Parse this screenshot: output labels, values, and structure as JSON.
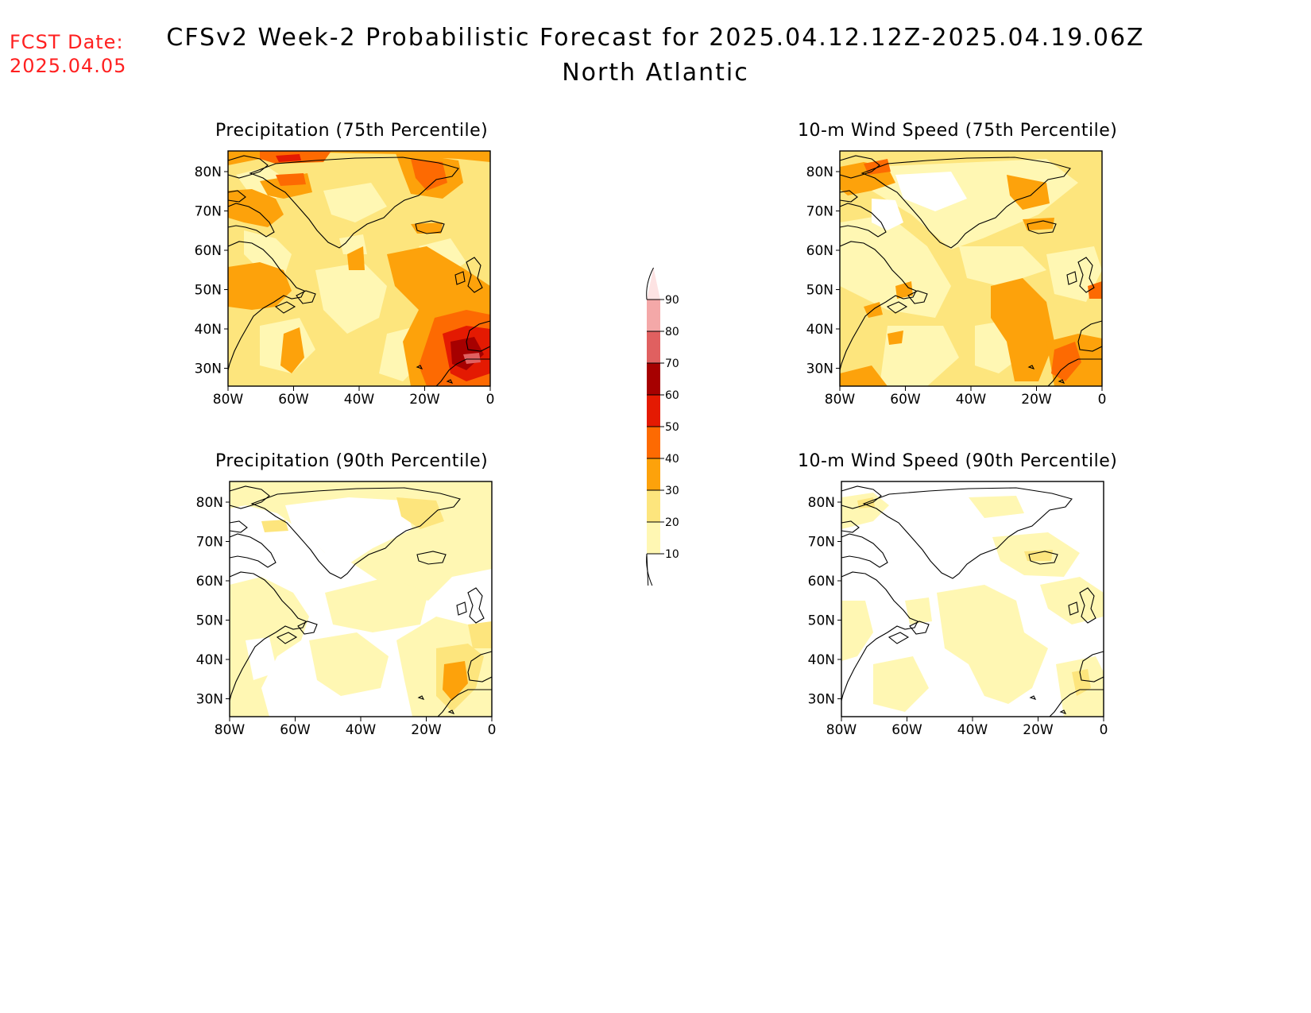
{
  "header": {
    "fcst_label": "FCST Date:",
    "fcst_date": "2025.04.05",
    "title": "CFSv2 Week-2 Probabilistic Forecast for 2025.04.12.12Z-2025.04.19.06Z",
    "subtitle": "North Atlantic"
  },
  "panels": [
    {
      "title": "Precipitation (75th Percentile)"
    },
    {
      "title": "10-m Wind Speed (75th Percentile)"
    },
    {
      "title": "Precipitation (90th Percentile)"
    },
    {
      "title": "10-m Wind Speed (90th Percentile)"
    }
  ],
  "axes": {
    "lat_labels": [
      "80N",
      "70N",
      "60N",
      "50N",
      "40N",
      "30N"
    ],
    "lon_labels": [
      "80W",
      "60W",
      "40W",
      "20W",
      "0"
    ]
  },
  "colorbar": {
    "levels": [
      "10",
      "20",
      "30",
      "40",
      "50",
      "60",
      "70",
      "80",
      "90"
    ],
    "colors": [
      "#fff7b3",
      "#fde57d",
      "#fda20b",
      "#fd6a02",
      "#e41a02",
      "#a60000",
      "#e06060",
      "#f4a8a8",
      "#fde3e3"
    ]
  }
}
